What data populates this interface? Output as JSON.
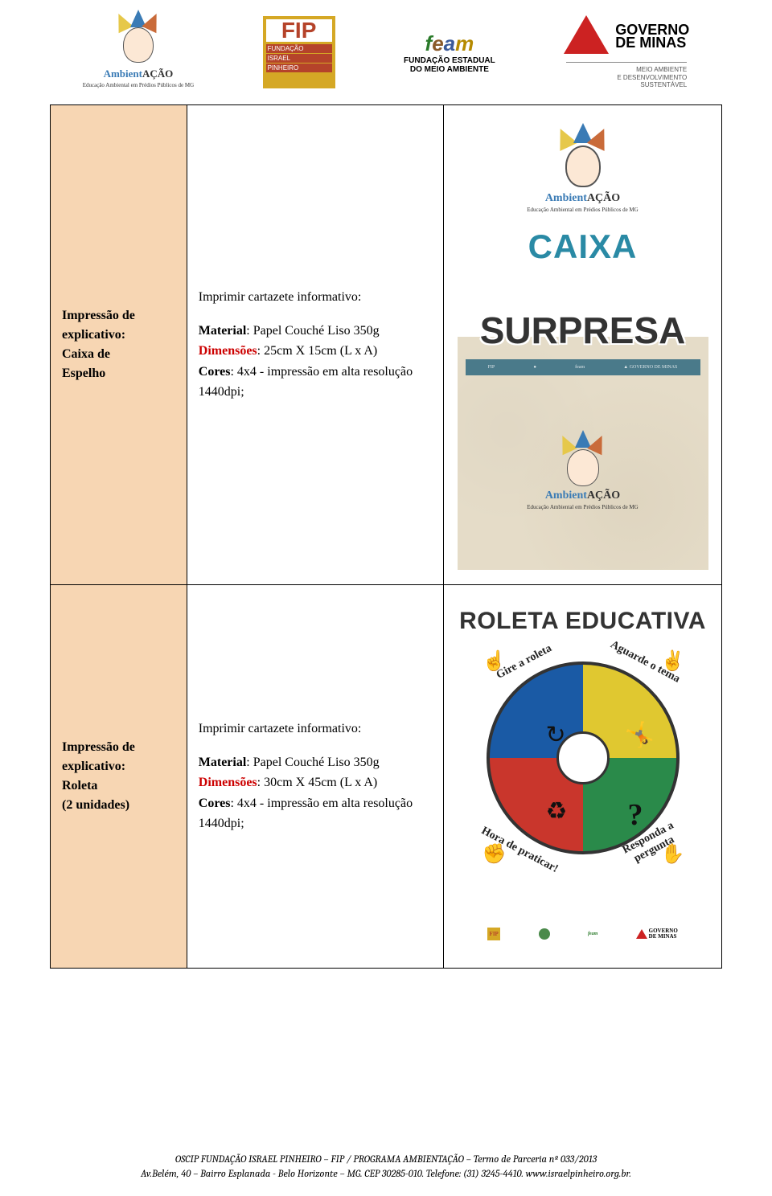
{
  "header": {
    "ambientacao": {
      "brand_blue": "Ambient",
      "brand_black": "AÇÃO",
      "sub": "Educação Ambiental em Prédios Públicos de MG"
    },
    "fip": {
      "top": "FIP",
      "l1": "FUNDAÇÃO",
      "l2": "ISRAEL",
      "l3": "PINHEIRO"
    },
    "feam": {
      "top": "feam",
      "sub1": "FUNDAÇÃO ESTADUAL",
      "sub2": "DO MEIO AMBIENTE"
    },
    "gov": {
      "l1": "GOVERNO",
      "l2": "DE MINAS",
      "sub": "MEIO AMBIENTE\nE DESENVOLVIMENTO\nSUSTENTÁVEL"
    }
  },
  "row1": {
    "label_l1": "Impressão de",
    "label_l2": "explicativo:",
    "label_l3": "Caixa de",
    "label_l4": "Espelho",
    "spec_heading": "Imprimir cartazete informativo:",
    "spec_mat_lbl": "Material",
    "spec_mat_val": ": Papel Couché Liso 350g",
    "spec_dim_lbl": "Dimensões",
    "spec_dim_val": ": 25cm X 15cm (L x A)",
    "spec_cor_lbl": "Cores",
    "spec_cor_val": ": 4x4 - impressão em alta resolução 1440dpi;",
    "preview": {
      "brand_blue": "Ambient",
      "brand_black": "AÇÃO",
      "brand_sub": "Educação Ambiental em Prédios Públicos de MG",
      "word1": "CAIXA",
      "word2": "SURPRESA",
      "strip": [
        "FIP",
        "●",
        "feam",
        "▲ GOVERNO DE MINAS"
      ]
    }
  },
  "row2": {
    "label_l1": "Impressão de",
    "label_l2": "explicativo:",
    "label_l3": "Roleta",
    "label_l4": " (2 unidades)",
    "spec_heading": "Imprimir cartazete informativo:",
    "spec_mat_lbl": "Material",
    "spec_mat_val": ": Papel Couché Liso 350g",
    "spec_dim_lbl": "Dimensões",
    "spec_dim_val": ": 30cm X 45cm (L x A)",
    "spec_cor_lbl": "Cores",
    "spec_cor_val": ": 4x4 - impressão em alta resolução 1440dpi;",
    "preview": {
      "title": "ROLETA EDUCATIVA",
      "arc1": "Gire a roleta",
      "arc2": "Aguarde o tema",
      "arc3": "Hora de praticar!",
      "arc4": "Responda a pergunta",
      "wheel_colors": [
        "#e0c830",
        "#2a8a4a",
        "#c9362c",
        "#1a5aa5"
      ],
      "quad_icons": {
        "run": "🕺",
        "arrow": "↺",
        "recycle": "♻",
        "question": "?"
      }
    }
  },
  "footer": {
    "l1": "OSCIP FUNDAÇÃO ISRAEL PINHEIRO – FIP / PROGRAMA AMBIENTAÇÃO – Termo de Parceria nº 033/2013",
    "l2": "Av.Belém, 40 – Bairro Esplanada - Belo Horizonte – MG. CEP 30285-010. Telefone: (31) 3245-4410. www.israelpinheiro.org.br."
  },
  "colors": {
    "label_bg": "#f7d6b3",
    "red_text": "#cc0000"
  }
}
